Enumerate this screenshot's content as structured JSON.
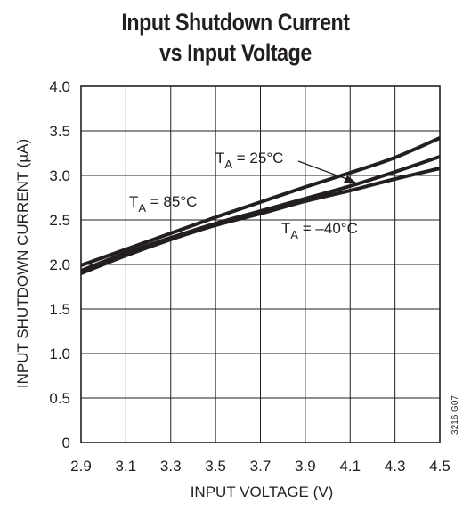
{
  "chart_data": {
    "type": "line",
    "title_line1": "Input Shutdown Current",
    "title_line2": "vs Input Voltage",
    "xlabel": "INPUT VOLTAGE (V)",
    "ylabel": "INPUT SHUTDOWN CURRENT (µA)",
    "xlim": [
      2.9,
      4.5
    ],
    "ylim": [
      0,
      4.0
    ],
    "xticks": [
      "2.9",
      "3.1",
      "3.3",
      "3.5",
      "3.7",
      "3.9",
      "4.1",
      "4.3",
      "4.5"
    ],
    "yticks": [
      "0",
      "0.5",
      "1.0",
      "1.5",
      "2.0",
      "2.5",
      "3.0",
      "3.5",
      "4.0"
    ],
    "grid": true,
    "series": [
      {
        "name": "TA = 85°C",
        "label_main": "T",
        "label_sub": "A",
        "label_rest": " = 85°C",
        "x": [
          2.9,
          3.1,
          3.3,
          3.5,
          3.7,
          3.9,
          4.1,
          4.3,
          4.5
        ],
        "values": [
          1.99,
          2.17,
          2.35,
          2.53,
          2.7,
          2.87,
          3.03,
          3.2,
          3.42
        ]
      },
      {
        "name": "TA = 25°C",
        "label_main": "T",
        "label_sub": "A",
        "label_rest": " = 25°C",
        "x": [
          2.9,
          3.1,
          3.3,
          3.5,
          3.7,
          3.9,
          4.1,
          4.3,
          4.5
        ],
        "values": [
          1.93,
          2.13,
          2.3,
          2.46,
          2.6,
          2.74,
          2.88,
          3.04,
          3.21
        ]
      },
      {
        "name": "TA = –40°C",
        "label_main": "T",
        "label_sub": "A",
        "label_rest": " = –40°C",
        "x": [
          2.9,
          3.1,
          3.3,
          3.5,
          3.7,
          3.9,
          4.1,
          4.3,
          4.5
        ],
        "values": [
          1.9,
          2.1,
          2.28,
          2.44,
          2.57,
          2.71,
          2.83,
          2.96,
          3.08
        ]
      }
    ],
    "figure_code": "3216 G07"
  }
}
